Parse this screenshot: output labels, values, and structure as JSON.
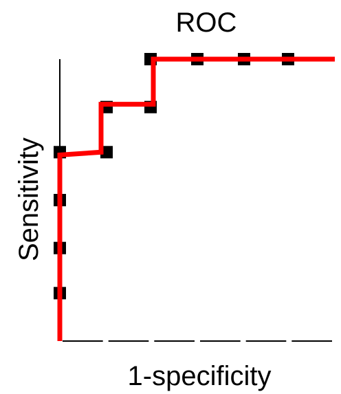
{
  "chart_data": {
    "type": "line",
    "title": "ROC",
    "xlabel": "1-specificity",
    "ylabel": "Sensitivity",
    "xlim": [
      0,
      1
    ],
    "ylim": [
      0,
      1
    ],
    "grid": false,
    "x_ticks": [
      0,
      0.1667,
      0.3333,
      0.5,
      0.6667,
      0.8333,
      1.0
    ],
    "points": [
      {
        "x": 0.0,
        "y": 0.17
      },
      {
        "x": 0.0,
        "y": 0.33
      },
      {
        "x": 0.0,
        "y": 0.5
      },
      {
        "x": 0.0,
        "y": 0.67
      },
      {
        "x": 0.17,
        "y": 0.67
      },
      {
        "x": 0.17,
        "y": 0.83
      },
      {
        "x": 0.33,
        "y": 0.83
      },
      {
        "x": 0.33,
        "y": 1.0
      },
      {
        "x": 0.5,
        "y": 1.0
      },
      {
        "x": 0.67,
        "y": 1.0
      },
      {
        "x": 0.83,
        "y": 1.0
      }
    ],
    "curve": [
      {
        "x": 0.0,
        "y": 0.0
      },
      {
        "x": 0.0,
        "y": 0.66
      },
      {
        "x": 0.15,
        "y": 0.67
      },
      {
        "x": 0.15,
        "y": 0.84
      },
      {
        "x": 0.34,
        "y": 0.84
      },
      {
        "x": 0.34,
        "y": 1.0
      },
      {
        "x": 1.0,
        "y": 1.0
      }
    ],
    "colors": {
      "curve": "#ff0000",
      "points": "#000000",
      "axis": "#000000"
    }
  }
}
